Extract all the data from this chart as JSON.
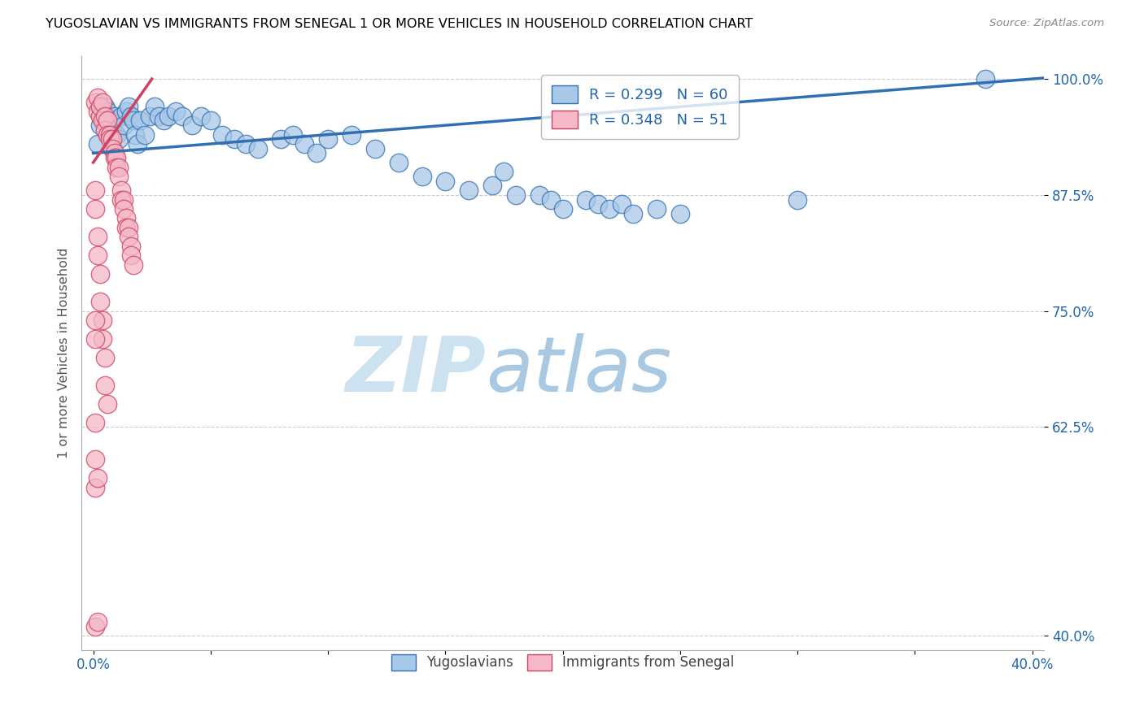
{
  "title": "YUGOSLAVIAN VS IMMIGRANTS FROM SENEGAL 1 OR MORE VEHICLES IN HOUSEHOLD CORRELATION CHART",
  "source": "Source: ZipAtlas.com",
  "ylabel": "1 or more Vehicles in Household",
  "blue_color": "#a8c8e8",
  "pink_color": "#f4b8c8",
  "line_blue": "#3070b0",
  "line_pink": "#d04060",
  "watermark_zip": "ZIP",
  "watermark_atlas": "atlas",
  "blue_x": [
    0.002,
    0.003,
    0.004,
    0.005,
    0.006,
    0.007,
    0.008,
    0.009,
    0.01,
    0.011,
    0.012,
    0.013,
    0.014,
    0.015,
    0.016,
    0.017,
    0.018,
    0.019,
    0.02,
    0.022,
    0.024,
    0.026,
    0.028,
    0.03,
    0.032,
    0.035,
    0.038,
    0.042,
    0.046,
    0.05,
    0.055,
    0.06,
    0.065,
    0.07,
    0.08,
    0.085,
    0.09,
    0.095,
    0.1,
    0.11,
    0.12,
    0.13,
    0.14,
    0.15,
    0.16,
    0.17,
    0.175,
    0.18,
    0.19,
    0.195,
    0.2,
    0.21,
    0.215,
    0.22,
    0.225,
    0.23,
    0.24,
    0.25,
    0.3,
    0.38
  ],
  "blue_y": [
    0.93,
    0.95,
    0.96,
    0.97,
    0.965,
    0.955,
    0.945,
    0.96,
    0.94,
    0.935,
    0.96,
    0.95,
    0.965,
    0.97,
    0.96,
    0.955,
    0.94,
    0.93,
    0.955,
    0.94,
    0.96,
    0.97,
    0.96,
    0.955,
    0.96,
    0.965,
    0.96,
    0.95,
    0.96,
    0.955,
    0.94,
    0.935,
    0.93,
    0.925,
    0.935,
    0.94,
    0.93,
    0.92,
    0.935,
    0.94,
    0.925,
    0.91,
    0.895,
    0.89,
    0.88,
    0.885,
    0.9,
    0.875,
    0.875,
    0.87,
    0.86,
    0.87,
    0.865,
    0.86,
    0.865,
    0.855,
    0.86,
    0.855,
    0.87,
    1.0
  ],
  "pink_x": [
    0.001,
    0.002,
    0.002,
    0.003,
    0.003,
    0.004,
    0.004,
    0.005,
    0.005,
    0.006,
    0.006,
    0.007,
    0.007,
    0.008,
    0.008,
    0.009,
    0.009,
    0.01,
    0.01,
    0.011,
    0.011,
    0.012,
    0.012,
    0.013,
    0.013,
    0.014,
    0.014,
    0.015,
    0.015,
    0.016,
    0.016,
    0.017,
    0.001,
    0.001,
    0.002,
    0.002,
    0.003,
    0.003,
    0.004,
    0.004,
    0.005,
    0.005,
    0.006,
    0.001,
    0.001,
    0.001,
    0.001,
    0.001,
    0.001,
    0.002,
    0.002
  ],
  "pink_y": [
    0.975,
    0.965,
    0.98,
    0.96,
    0.97,
    0.955,
    0.975,
    0.96,
    0.945,
    0.955,
    0.94,
    0.94,
    0.935,
    0.935,
    0.925,
    0.92,
    0.915,
    0.915,
    0.905,
    0.905,
    0.895,
    0.88,
    0.87,
    0.87,
    0.86,
    0.85,
    0.84,
    0.84,
    0.83,
    0.82,
    0.81,
    0.8,
    0.88,
    0.86,
    0.83,
    0.81,
    0.79,
    0.76,
    0.74,
    0.72,
    0.7,
    0.67,
    0.65,
    0.74,
    0.72,
    0.63,
    0.59,
    0.56,
    0.41,
    0.57,
    0.415
  ],
  "xlim": [
    -0.005,
    0.405
  ],
  "ylim": [
    0.385,
    1.025
  ],
  "ytick_positions": [
    0.4,
    0.625,
    0.75,
    0.875,
    1.0
  ],
  "ytick_labels": [
    "40.0%",
    "62.5%",
    "75.0%",
    "87.5%",
    "100.0%"
  ],
  "xtick_positions": [
    0.0,
    0.05,
    0.1,
    0.15,
    0.2,
    0.25,
    0.3,
    0.35,
    0.4
  ],
  "xtick_labels": [
    "0.0%",
    "",
    "",
    "",
    "",
    "",
    "",
    "",
    "40.0%"
  ]
}
